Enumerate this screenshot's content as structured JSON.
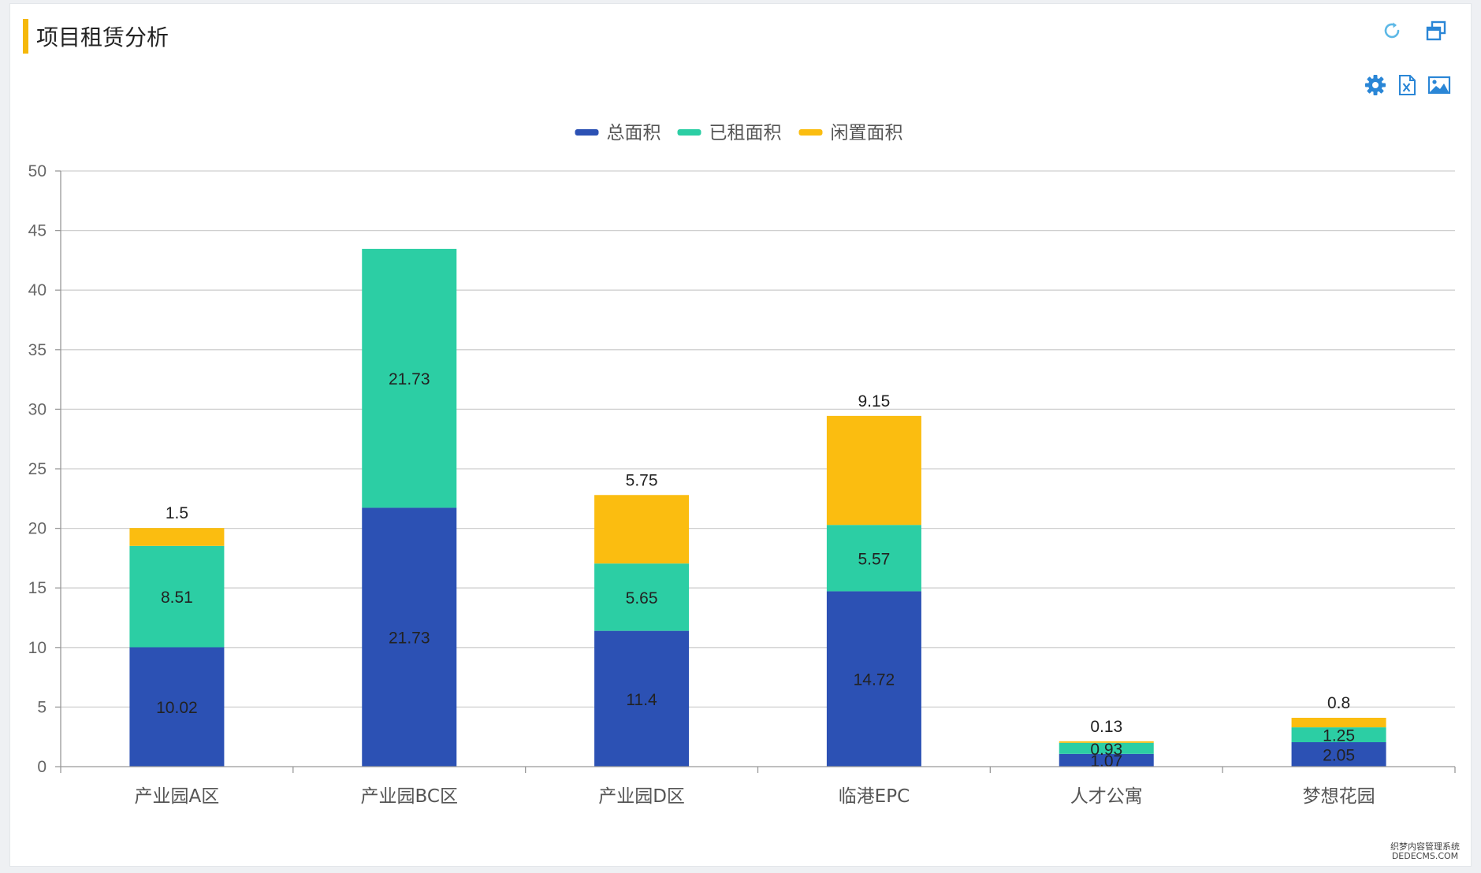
{
  "panel": {
    "title": "项目租赁分析"
  },
  "icons": {
    "refresh": "refresh-icon",
    "maximize": "maximize-icon",
    "settings": "gear-icon",
    "excel": "excel-export-icon",
    "image": "image-export-icon"
  },
  "colors": {
    "total": "#2c51b4",
    "rented": "#2ccea4",
    "idle": "#fbbd10",
    "accent": "#f5b80a",
    "icon": "#2a86d6"
  },
  "watermark": {
    "line1": "织梦内容管理系统",
    "line2": "DEDECMS.COM"
  },
  "chart_data": {
    "type": "bar",
    "stacked": true,
    "categories": [
      "产业园A区",
      "产业园BC区",
      "产业园D区",
      "临港EPC",
      "人才公寓",
      "梦想花园"
    ],
    "series": [
      {
        "name": "总面积",
        "values": [
          10.02,
          21.73,
          11.4,
          14.72,
          1.07,
          2.05
        ],
        "color": "#2c51b4"
      },
      {
        "name": "已租面积",
        "values": [
          8.51,
          21.73,
          5.65,
          5.57,
          0.93,
          1.25
        ],
        "color": "#2ccea4"
      },
      {
        "name": "闲置面积",
        "values": [
          1.5,
          0,
          5.75,
          9.15,
          0.13,
          0.8
        ],
        "color": "#fbbd10"
      }
    ],
    "ylim": [
      0,
      50
    ],
    "yticks": [
      0,
      5,
      10,
      15,
      20,
      25,
      30,
      35,
      40,
      45,
      50
    ],
    "grid": true,
    "legend": "top-center"
  }
}
